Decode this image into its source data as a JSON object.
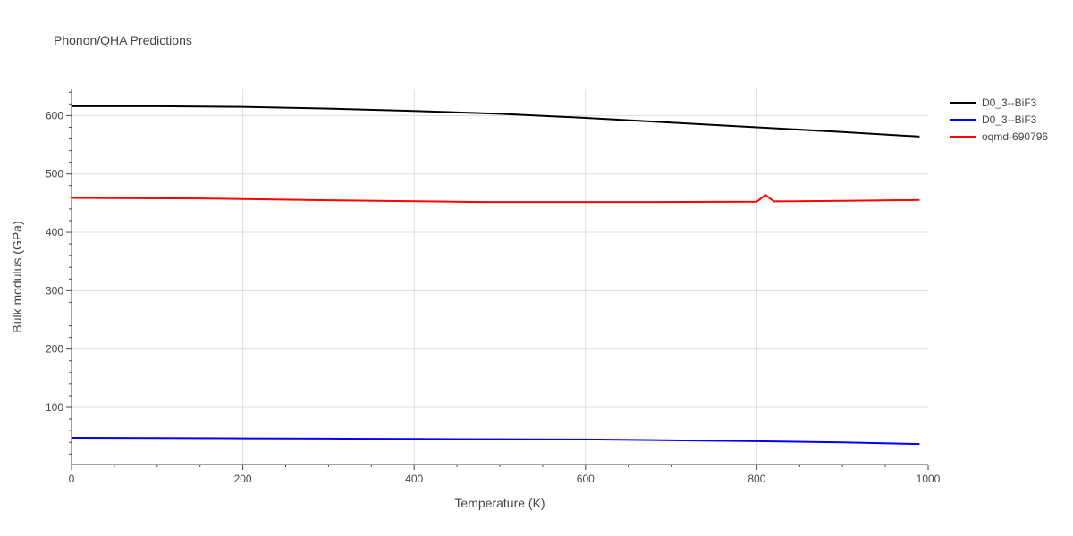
{
  "chart_data": {
    "type": "line",
    "title": "Phonon/QHA Predictions",
    "xlabel": "Temperature (K)",
    "ylabel": "Bulk modulus (GPa)",
    "xlim": [
      0,
      1000
    ],
    "ylim": [
      2,
      645
    ],
    "x_ticks": [
      0,
      200,
      400,
      600,
      800,
      1000
    ],
    "y_ticks": [
      100,
      200,
      300,
      400,
      500,
      600
    ],
    "grid": true,
    "legend_position": "top-right",
    "series": [
      {
        "name": "D0_3--BiF3",
        "color": "#000000",
        "x": [
          0,
          100,
          200,
          300,
          400,
          500,
          600,
          700,
          800,
          900,
          990
        ],
        "y": [
          616,
          616,
          615,
          612,
          608,
          603,
          596,
          588,
          580,
          572,
          564
        ]
      },
      {
        "name": "D0_3--BiF3",
        "color": "#0000ff",
        "x": [
          0,
          100,
          200,
          300,
          400,
          500,
          600,
          680,
          800,
          900,
          990
        ],
        "y": [
          48,
          47.5,
          47,
          46.5,
          46,
          45.5,
          45,
          44,
          42,
          40,
          37
        ]
      },
      {
        "name": "oqmd-690796",
        "color": "#ff0000",
        "x": [
          0,
          150,
          300,
          480,
          680,
          800,
          810,
          820,
          900,
          990
        ],
        "y": [
          459,
          458,
          455,
          452,
          452,
          452.5,
          464,
          453,
          454,
          455.5
        ]
      }
    ]
  }
}
